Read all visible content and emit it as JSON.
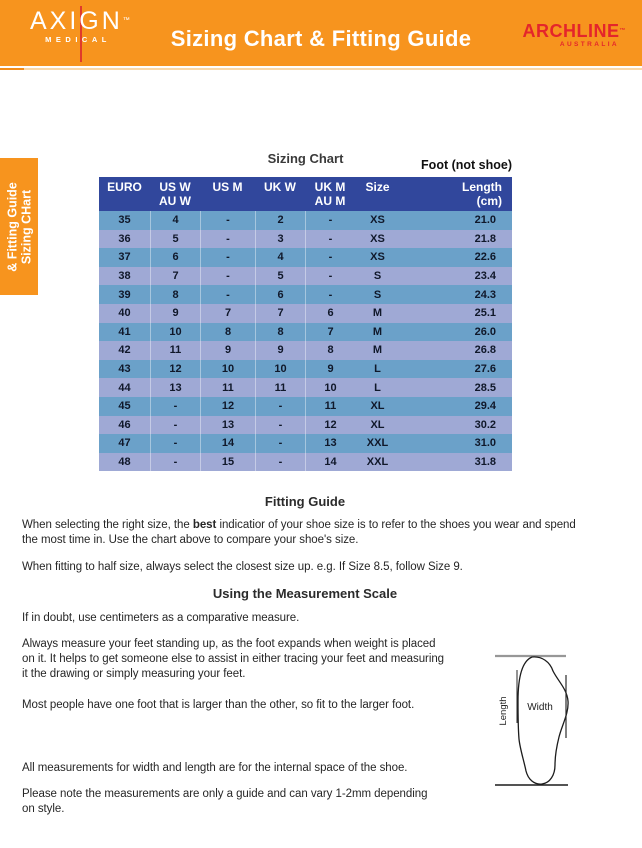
{
  "header": {
    "logo": {
      "name": "AXIGN",
      "tm": "™",
      "sub": "MEDICAL"
    },
    "title": "Sizing Chart & Fitting Guide",
    "brand_right": {
      "name": "ARCHLINE",
      "tm": "™",
      "sub": "AUSTRALIA"
    }
  },
  "side_tab": {
    "line1": "Sizing CHart",
    "line2": "& Fitting Guide"
  },
  "table": {
    "title": "Sizing Chart",
    "note": "Foot (not shoe)",
    "columns": [
      [
        "EURO",
        ""
      ],
      [
        "US W",
        "AU W"
      ],
      [
        "US M",
        ""
      ],
      [
        "UK W",
        ""
      ],
      [
        "UK M",
        "AU M"
      ],
      [
        "Size",
        ""
      ],
      [
        "Length",
        "(cm)"
      ]
    ],
    "rows": [
      [
        "35",
        "4",
        "-",
        "2",
        "-",
        "XS",
        "21.0"
      ],
      [
        "36",
        "5",
        "-",
        "3",
        "-",
        "XS",
        "21.8"
      ],
      [
        "37",
        "6",
        "-",
        "4",
        "-",
        "XS",
        "22.6"
      ],
      [
        "38",
        "7",
        "-",
        "5",
        "-",
        "S",
        "23.4"
      ],
      [
        "39",
        "8",
        "-",
        "6",
        "-",
        "S",
        "24.3"
      ],
      [
        "40",
        "9",
        "7",
        "7",
        "6",
        "M",
        "25.1"
      ],
      [
        "41",
        "10",
        "8",
        "8",
        "7",
        "M",
        "26.0"
      ],
      [
        "42",
        "11",
        "9",
        "9",
        "8",
        "M",
        "26.8"
      ],
      [
        "43",
        "12",
        "10",
        "10",
        "9",
        "L",
        "27.6"
      ],
      [
        "44",
        "13",
        "11",
        "11",
        "10",
        "L",
        "28.5"
      ],
      [
        "45",
        "-",
        "12",
        "-",
        "11",
        "XL",
        "29.4"
      ],
      [
        "46",
        "-",
        "13",
        "-",
        "12",
        "XL",
        "30.2"
      ],
      [
        "47",
        "-",
        "14",
        "-",
        "13",
        "XXL",
        "31.0"
      ],
      [
        "48",
        "-",
        "15",
        "-",
        "14",
        "XXL",
        "31.8"
      ]
    ]
  },
  "fitting_guide": {
    "heading": "Fitting Guide",
    "p1": {
      "pre": "When selecting the right size, the ",
      "bold": "best",
      "post": " indicatior of your shoe size is to refer to the shoes you wear and spend",
      "line2": "the most time in. Use the chart above to compare your shoe's size."
    },
    "p2": "When fitting to half size, always select the closest size up. e.g. If Size 8.5, follow Size 9."
  },
  "measurement": {
    "heading": "Using the Measurement Scale",
    "p1": "If in doubt, use centimeters as a comparative measure.",
    "p2": [
      "Always measure your feet standing up, as the foot expands when weight is placed",
      "on it. It helps to get someone else to assist in either tracing your feet and measuring",
      "it the drawing or simply measuring your feet."
    ],
    "p3": "Most people have one foot that is larger than the other, so fit to the larger foot.",
    "p4": "All measurements for width and length are for the internal space of the shoe.",
    "p5": [
      "Please note the measurements are only a guide and can vary 1-2mm depending",
      "on style."
    ]
  },
  "diagram": {
    "width_label": "Width",
    "length_label": "Length"
  },
  "colors": {
    "banner_orange": "#F7941E",
    "accent_red": "#E4252B",
    "table_header_blue": "#31479C",
    "row_steel_blue": "#6BA1C9",
    "row_periwinkle": "#9FA9D5",
    "underline_pale_orange": "#FAD8A9"
  }
}
